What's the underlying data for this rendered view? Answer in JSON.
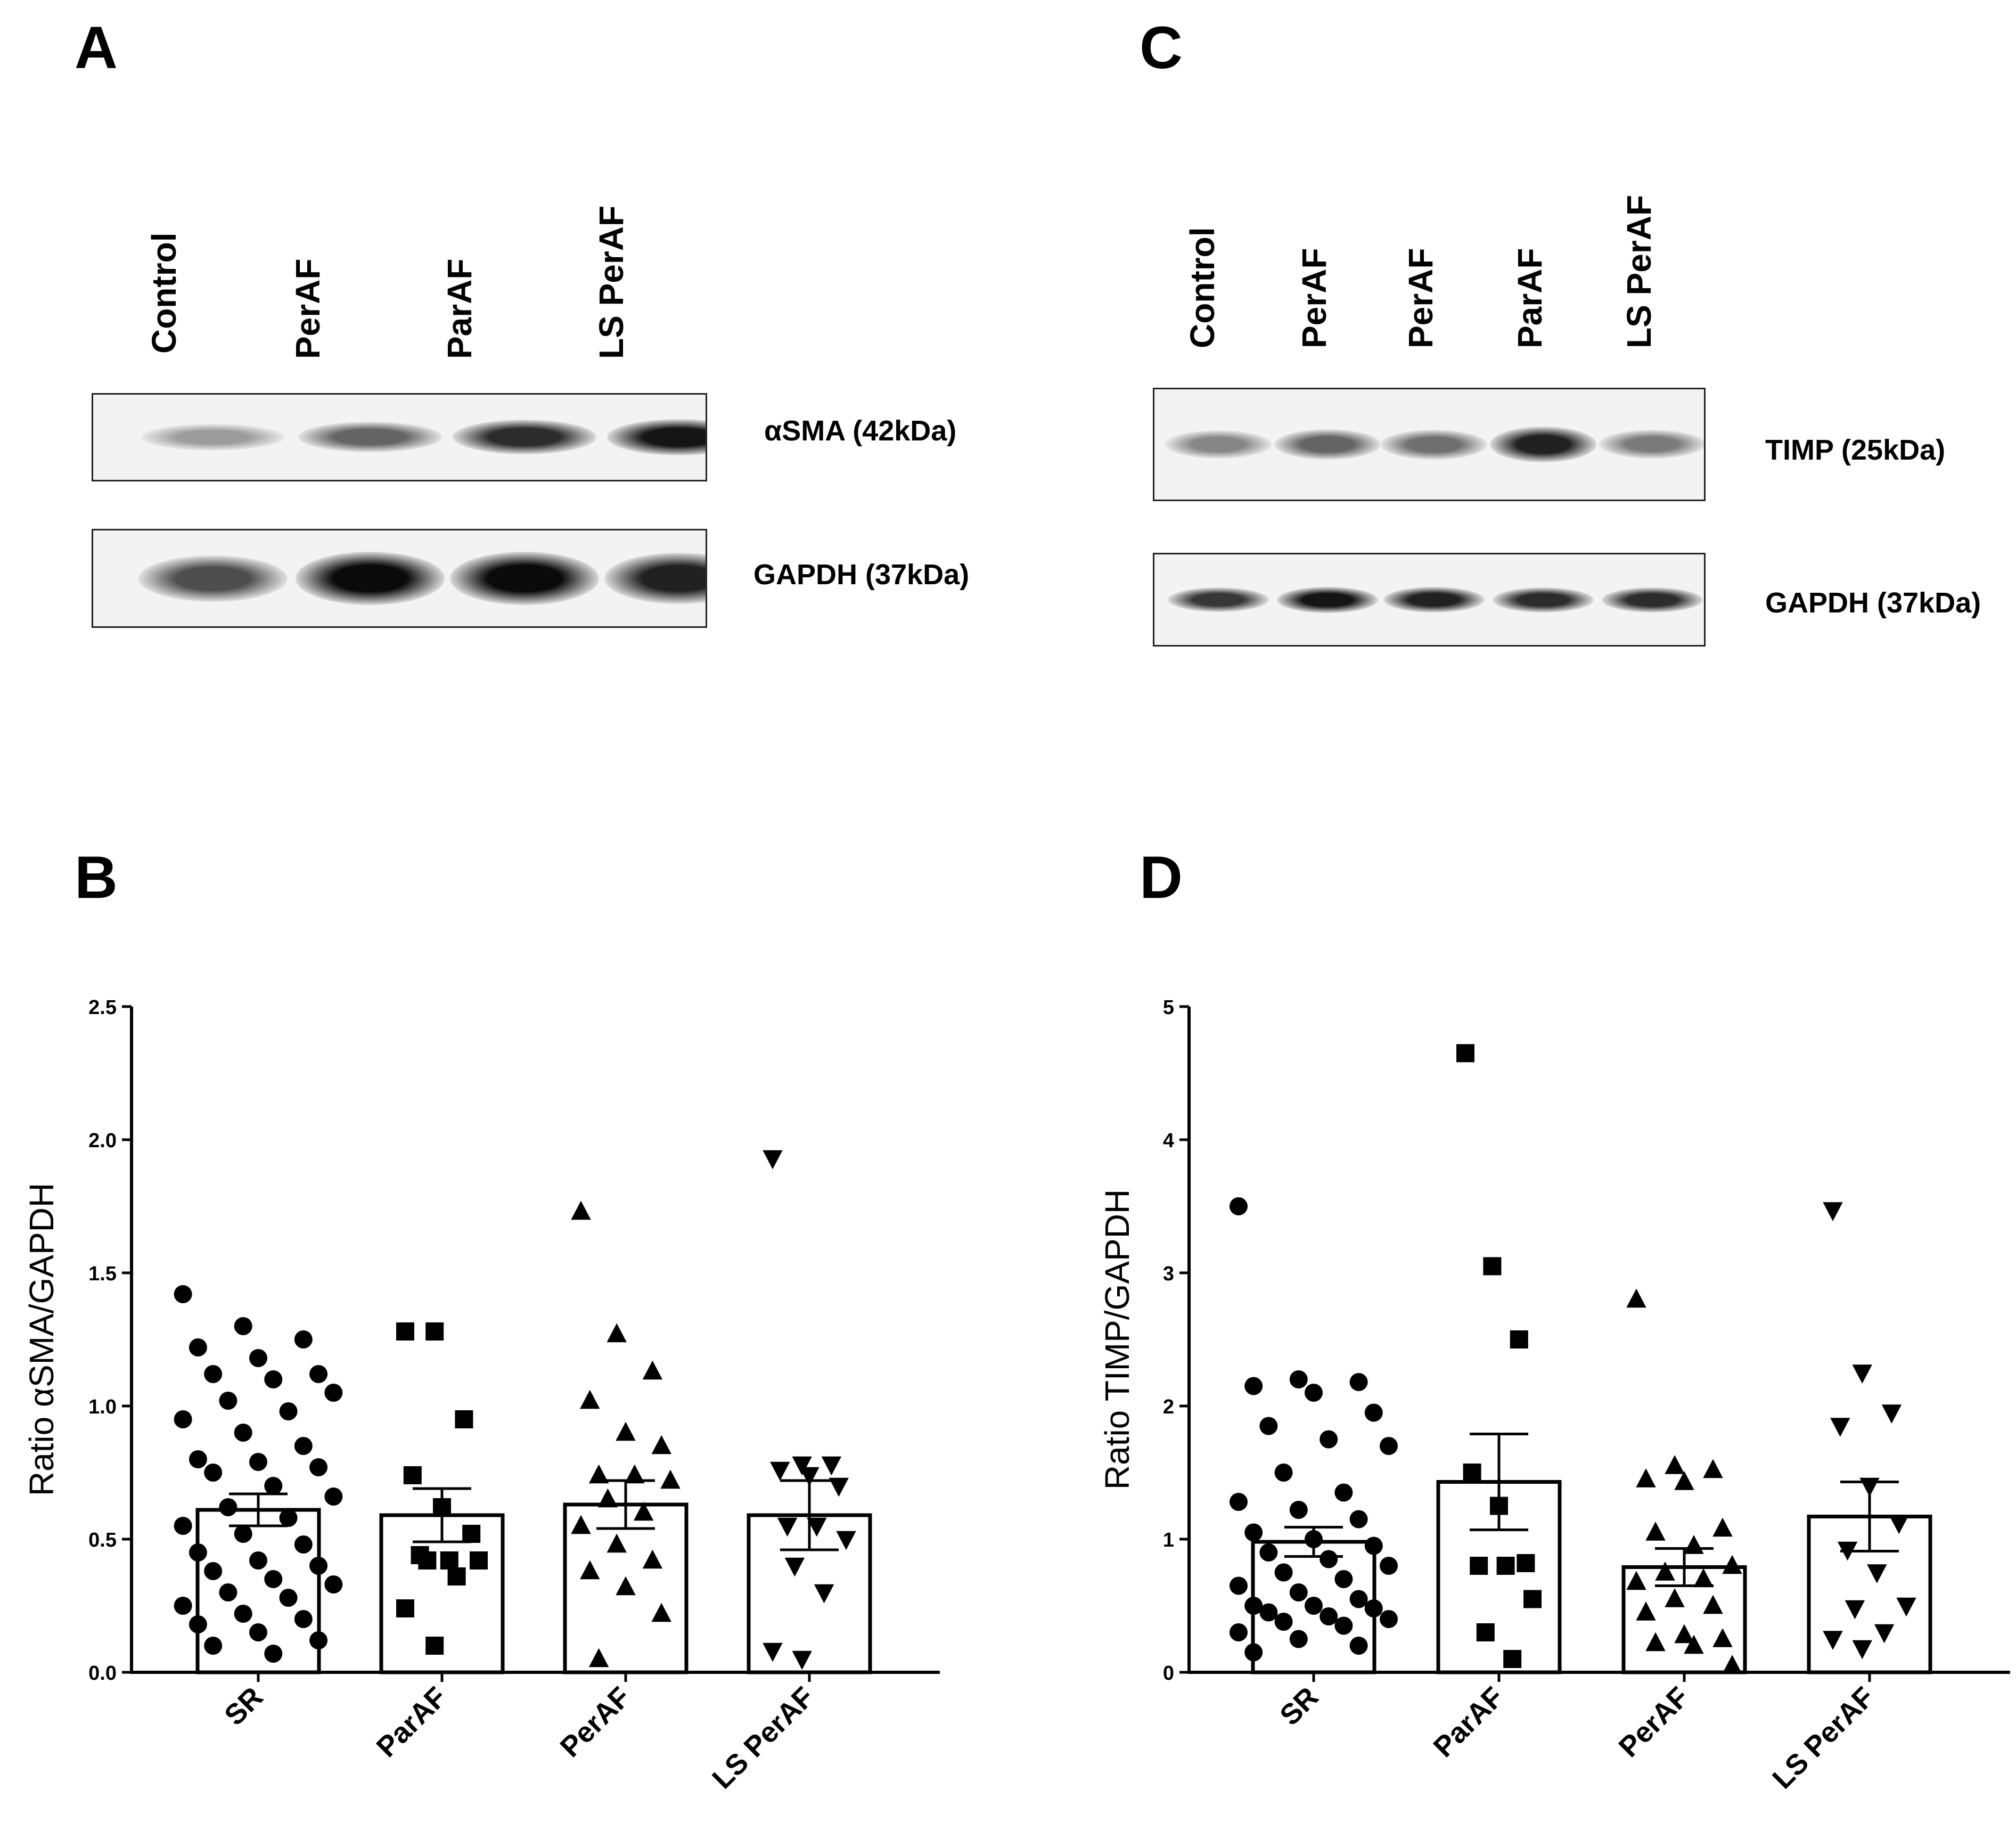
{
  "panels": {
    "a": {
      "letter": "A",
      "lanes": [
        "Control",
        "PerAF",
        "ParAF",
        "LS PerAF"
      ],
      "rows": [
        {
          "label": "αSMA (42kDa)",
          "intensities": [
            0.35,
            0.6,
            0.85,
            0.95
          ]
        },
        {
          "label": "GAPDH (37kDa)",
          "intensities": [
            0.7,
            1.0,
            1.0,
            0.9
          ]
        }
      ]
    },
    "c": {
      "letter": "C",
      "lanes": [
        "Control",
        "PerAF",
        "PerAF",
        "ParAF",
        "LS PerAF"
      ],
      "rows": [
        {
          "label": "TIMP (25kDa)",
          "intensities": [
            0.45,
            0.6,
            0.55,
            0.9,
            0.5
          ]
        },
        {
          "label": "GAPDH (37kDa)",
          "intensities": [
            0.8,
            0.95,
            0.9,
            0.85,
            0.85
          ]
        }
      ]
    },
    "b": {
      "letter": "B"
    },
    "d": {
      "letter": "D"
    }
  },
  "chart_data": [
    {
      "type": "bar",
      "panel": "B",
      "title": "",
      "xlabel": "",
      "ylabel": "Ratio αSMA/GAPDH",
      "ylim": [
        0,
        2.5
      ],
      "yticks": [
        "0.0",
        "0.5",
        "1.0",
        "1.5",
        "2.0",
        "2.5"
      ],
      "categories": [
        "SR",
        "ParAF",
        "PerAF",
        "LS PerAF"
      ],
      "means": [
        0.61,
        0.59,
        0.63,
        0.59
      ],
      "sem": [
        0.06,
        0.1,
        0.09,
        0.13
      ],
      "marker_shapes": [
        "circle",
        "square",
        "triangle-up",
        "triangle-down"
      ],
      "points": [
        [
          1.42,
          1.3,
          1.25,
          1.22,
          1.18,
          1.12,
          1.12,
          1.1,
          1.05,
          1.02,
          0.98,
          0.95,
          0.9,
          0.85,
          0.8,
          0.79,
          0.77,
          0.75,
          0.7,
          0.66,
          0.62,
          0.58,
          0.55,
          0.52,
          0.48,
          0.45,
          0.42,
          0.4,
          0.38,
          0.35,
          0.33,
          0.3,
          0.28,
          0.25,
          0.22,
          0.2,
          0.18,
          0.15,
          0.12,
          0.1,
          0.07
        ],
        [
          1.28,
          1.28,
          0.95,
          0.74,
          0.62,
          0.52,
          0.44,
          0.42,
          0.42,
          0.42,
          0.36,
          0.24,
          0.1
        ],
        [
          1.73,
          1.27,
          1.13,
          1.02,
          0.9,
          0.85,
          0.74,
          0.74,
          0.72,
          0.65,
          0.6,
          0.55,
          0.48,
          0.42,
          0.38,
          0.32,
          0.22,
          0.05
        ],
        [
          1.93,
          0.78,
          0.78,
          0.76,
          0.74,
          0.7,
          0.55,
          0.55,
          0.5,
          0.4,
          0.3,
          0.08,
          0.05
        ]
      ]
    },
    {
      "type": "bar",
      "panel": "D",
      "title": "",
      "xlabel": "",
      "ylabel": "Ratio TIMP/GAPDH",
      "ylim": [
        0,
        5
      ],
      "yticks": [
        "0",
        "1",
        "2",
        "3",
        "4",
        "5"
      ],
      "categories": [
        "SR",
        "ParAF",
        "PerAF",
        "LS PerAF"
      ],
      "means": [
        0.98,
        1.43,
        0.79,
        1.17
      ],
      "sem": [
        0.11,
        0.36,
        0.14,
        0.26
      ],
      "marker_shapes": [
        "circle",
        "square",
        "triangle-up",
        "triangle-down"
      ],
      "points": [
        [
          3.5,
          2.2,
          2.18,
          2.15,
          2.1,
          1.95,
          1.85,
          1.75,
          1.7,
          1.5,
          1.35,
          1.28,
          1.22,
          1.15,
          1.05,
          1.0,
          0.95,
          0.9,
          0.85,
          0.8,
          0.75,
          0.7,
          0.65,
          0.6,
          0.55,
          0.5,
          0.5,
          0.48,
          0.45,
          0.42,
          0.4,
          0.38,
          0.35,
          0.3,
          0.25,
          0.2,
          0.15
        ],
        [
          4.65,
          3.05,
          2.5,
          1.5,
          1.25,
          0.82,
          0.8,
          0.8,
          0.55,
          0.3,
          0.1
        ],
        [
          2.8,
          1.55,
          1.52,
          1.45,
          1.43,
          1.08,
          1.05,
          0.95,
          0.8,
          0.75,
          0.7,
          0.68,
          0.55,
          0.5,
          0.45,
          0.28,
          0.25,
          0.22,
          0.2,
          0.05
        ],
        [
          3.47,
          2.25,
          1.95,
          1.85,
          1.4,
          1.12,
          0.92,
          0.75,
          0.5,
          0.48,
          0.3,
          0.25,
          0.18
        ]
      ]
    }
  ]
}
